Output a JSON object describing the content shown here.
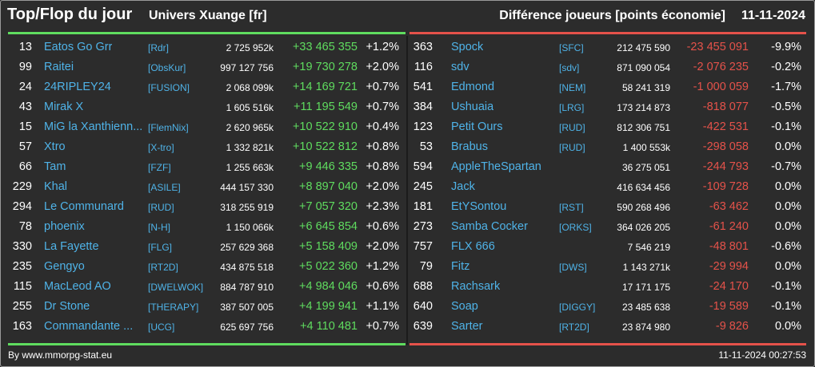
{
  "header": {
    "title": "Top/Flop du jour",
    "server": "Univers Xuange [fr]",
    "diff_label": "Différence joueurs [points économie]",
    "date": "11-11-2024"
  },
  "colors": {
    "top_accent": "#5fdc5f",
    "flop_accent": "#e5524a",
    "name_color": "#4fb3e8",
    "background": "#2c2c2c"
  },
  "top": [
    {
      "rank": "13",
      "name": "Eatos Go Grr",
      "tag": "[Rdr]",
      "total": "2 725 952k",
      "diff": "+33 465 355",
      "pct": "+1.2%"
    },
    {
      "rank": "99",
      "name": "Raitei",
      "tag": "[ObsKur]",
      "total": "997 127 756",
      "diff": "+19 730 278",
      "pct": "+2.0%"
    },
    {
      "rank": "24",
      "name": "24RIPLEY24",
      "tag": "[FUSION]",
      "total": "2 068 099k",
      "diff": "+14 169 721",
      "pct": "+0.7%"
    },
    {
      "rank": "43",
      "name": "Mirak X",
      "tag": "",
      "total": "1 605 516k",
      "diff": "+11 195 549",
      "pct": "+0.7%"
    },
    {
      "rank": "15",
      "name": "MiG la Xanthienn...",
      "tag": "[FlemNix]",
      "total": "2 620 965k",
      "diff": "+10 522 910",
      "pct": "+0.4%"
    },
    {
      "rank": "57",
      "name": "Xtro",
      "tag": "[X-tro]",
      "total": "1 332 821k",
      "diff": "+10 522 812",
      "pct": "+0.8%"
    },
    {
      "rank": "66",
      "name": "Tam",
      "tag": "[FZF]",
      "total": "1 255 663k",
      "diff": "+9 446 335",
      "pct": "+0.8%"
    },
    {
      "rank": "229",
      "name": "Khal",
      "tag": "[ASILE]",
      "total": "444 157 330",
      "diff": "+8 897 040",
      "pct": "+2.0%"
    },
    {
      "rank": "294",
      "name": "Le Communard",
      "tag": "[RUD]",
      "total": "318 255 919",
      "diff": "+7 057 320",
      "pct": "+2.3%"
    },
    {
      "rank": "78",
      "name": "phoenix",
      "tag": "[N-H]",
      "total": "1 150 066k",
      "diff": "+6 645 854",
      "pct": "+0.6%"
    },
    {
      "rank": "330",
      "name": "La Fayette",
      "tag": "[FLG]",
      "total": "257 629 368",
      "diff": "+5 158 409",
      "pct": "+2.0%"
    },
    {
      "rank": "235",
      "name": "Gengyo",
      "tag": "[RT2D]",
      "total": "434 875 518",
      "diff": "+5 022 360",
      "pct": "+1.2%"
    },
    {
      "rank": "115",
      "name": "MacLeod AO",
      "tag": "[DWELWOK]",
      "total": "884 787 910",
      "diff": "+4 984 046",
      "pct": "+0.6%"
    },
    {
      "rank": "255",
      "name": "Dr Stone",
      "tag": "[THERAPY]",
      "total": "387 507 005",
      "diff": "+4 199 941",
      "pct": "+1.1%"
    },
    {
      "rank": "163",
      "name": "Commandante ...",
      "tag": "[UCG]",
      "total": "625 697 756",
      "diff": "+4 110 481",
      "pct": "+0.7%"
    }
  ],
  "flop": [
    {
      "rank": "363",
      "name": "Spock",
      "tag": "[SFC]",
      "total": "212 475 590",
      "diff": "-23 455 091",
      "pct": "-9.9%"
    },
    {
      "rank": "116",
      "name": "sdv",
      "tag": "[sdv]",
      "total": "871 090 054",
      "diff": "-2 076 235",
      "pct": "-0.2%"
    },
    {
      "rank": "541",
      "name": "Edmond",
      "tag": "[NEM]",
      "total": "58 241 319",
      "diff": "-1 000 059",
      "pct": "-1.7%"
    },
    {
      "rank": "384",
      "name": "Ushuaia",
      "tag": "[LRG]",
      "total": "173 214 873",
      "diff": "-818 077",
      "pct": "-0.5%"
    },
    {
      "rank": "123",
      "name": "Petit Ours",
      "tag": "[RUD]",
      "total": "812 306 751",
      "diff": "-422 531",
      "pct": "-0.1%"
    },
    {
      "rank": "53",
      "name": "Brabus",
      "tag": "[RUD]",
      "total": "1 400 553k",
      "diff": "-298 058",
      "pct": "0.0%"
    },
    {
      "rank": "594",
      "name": "AppleTheSpartan",
      "tag": "",
      "total": "36 275 051",
      "diff": "-244 793",
      "pct": "-0.7%"
    },
    {
      "rank": "245",
      "name": "Jack",
      "tag": "",
      "total": "416 634 456",
      "diff": "-109 728",
      "pct": "0.0%"
    },
    {
      "rank": "181",
      "name": "EtYSontou",
      "tag": "[RST]",
      "total": "590 268 496",
      "diff": "-63 462",
      "pct": "0.0%"
    },
    {
      "rank": "273",
      "name": "Samba Cocker",
      "tag": "[ORKS]",
      "total": "364 026 205",
      "diff": "-61 240",
      "pct": "0.0%"
    },
    {
      "rank": "757",
      "name": "FLX 666",
      "tag": "",
      "total": "7 546 219",
      "diff": "-48 801",
      "pct": "-0.6%"
    },
    {
      "rank": "79",
      "name": "Fitz",
      "tag": "[DWS]",
      "total": "1 143 271k",
      "diff": "-29 994",
      "pct": "0.0%"
    },
    {
      "rank": "688",
      "name": "Rachsark",
      "tag": "",
      "total": "17 171 175",
      "diff": "-24 170",
      "pct": "-0.1%"
    },
    {
      "rank": "640",
      "name": "Soap",
      "tag": "[DIGGY]",
      "total": "23 485 638",
      "diff": "-19 589",
      "pct": "-0.1%"
    },
    {
      "rank": "639",
      "name": "Sarter",
      "tag": "[RT2D]",
      "total": "23 874 980",
      "diff": "-9 826",
      "pct": "0.0%"
    }
  ],
  "footer": {
    "credit": "By www.mmorpg-stat.eu",
    "timestamp": "11-11-2024 00:27:53"
  }
}
